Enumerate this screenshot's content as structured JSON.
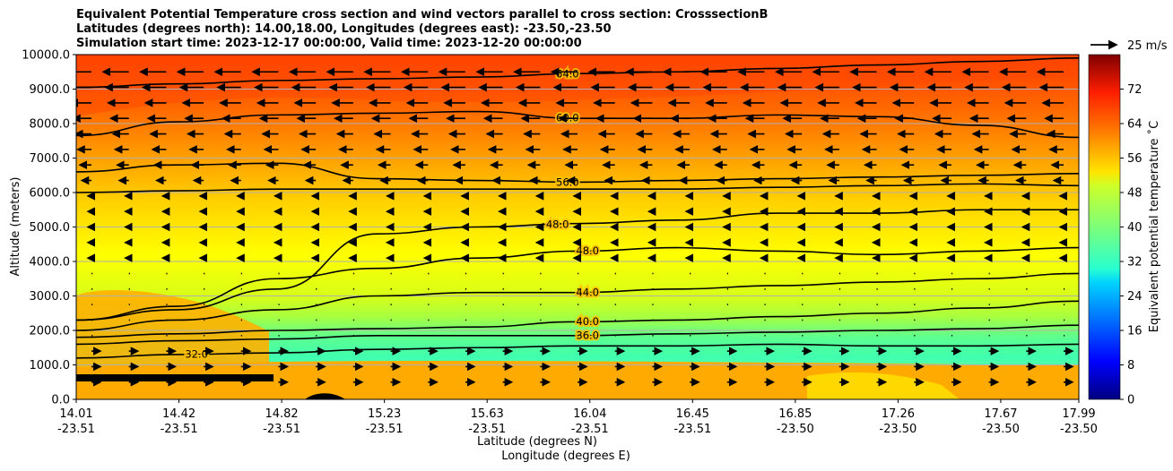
{
  "chart_data": {
    "type": "heatmap",
    "title_lines": [
      "Equivalent Potential Temperature cross section and wind vectors parallel to cross section: CrosssectionB",
      "Latitudes (degrees north): 14.00,18.00, Longitudes (degrees east): -23.50,-23.50",
      "Simulation start time: 2023-12-17 00:00:00, Valid time: 2023-12-20 00:00:00"
    ],
    "ylabel": "Altitude (meters)",
    "xlabel_line1": "Latitude (degrees N)",
    "xlabel_line2": "Longitude (degrees E)",
    "ylim": [
      0,
      10000
    ],
    "yticks": [
      "0.0",
      "1000.0",
      "2000.0",
      "3000.0",
      "4000.0",
      "5000.0",
      "6000.0",
      "7000.0",
      "8000.0",
      "9000.0",
      "10000.0"
    ],
    "xticks": [
      {
        "lat": "14.01",
        "lon": "-23.51"
      },
      {
        "lat": "14.42",
        "lon": "-23.51"
      },
      {
        "lat": "14.82",
        "lon": "-23.51"
      },
      {
        "lat": "15.23",
        "lon": "-23.51"
      },
      {
        "lat": "15.63",
        "lon": "-23.51"
      },
      {
        "lat": "16.04",
        "lon": "-23.51"
      },
      {
        "lat": "16.45",
        "lon": "-23.51"
      },
      {
        "lat": "16.85",
        "lon": "-23.50"
      },
      {
        "lat": "17.26",
        "lon": "-23.50"
      },
      {
        "lat": "17.67",
        "lon": "-23.50"
      },
      {
        "lat": "17.99",
        "lon": "-23.50"
      }
    ],
    "colorbar": {
      "label": "Equivalent potential temperature $^\\circ$C",
      "label_display": "Equivalent potential temperature ˚C",
      "range": [
        0,
        80
      ],
      "ticks": [
        "0",
        "8",
        "16",
        "24",
        "32",
        "40",
        "48",
        "56",
        "64",
        "72"
      ],
      "colormap": "jet"
    },
    "quiver_key": "25 m/s",
    "contours": [
      {
        "value": 64.0,
        "label": "64.0",
        "alt": [
          9050,
          9150,
          9250,
          9300,
          9350,
          9450,
          9500,
          9600,
          9700,
          9800,
          9900
        ]
      },
      {
        "value": 60.0,
        "label": "60.0",
        "alt": [
          7650,
          8050,
          8250,
          8300,
          8350,
          8150,
          8150,
          8250,
          8200,
          7950,
          7600
        ]
      },
      {
        "value": 56.0,
        "label": "56.0",
        "alt": [
          6600,
          6800,
          6850,
          6400,
          6350,
          6300,
          6350,
          6400,
          6450,
          6500,
          6550
        ]
      },
      {
        "value": 52.0,
        "label": "",
        "alt": [
          6000,
          6050,
          6100,
          6100,
          6100,
          6100,
          6100,
          6150,
          6200,
          6250,
          6200
        ]
      },
      {
        "value": 48.0,
        "label": "48.0",
        "alt": [
          2300,
          2600,
          3200,
          4800,
          5000,
          5100,
          5200,
          5400,
          5400,
          5500,
          5500
        ]
      },
      {
        "value": 48.0,
        "label": "48.0",
        "alt": [
          2300,
          2700,
          3500,
          3800,
          4100,
          4300,
          4400,
          4300,
          4200,
          4300,
          4400
        ]
      },
      {
        "value": 44.0,
        "label": "44.0",
        "alt": [
          2000,
          2300,
          2600,
          3000,
          3100,
          3100,
          3200,
          3300,
          3400,
          3500,
          3650
        ]
      },
      {
        "value": 40.0,
        "label": "40.0",
        "alt": [
          1800,
          1900,
          2000,
          2050,
          2100,
          2250,
          2300,
          2400,
          2500,
          2650,
          2850
        ]
      },
      {
        "value": 36.0,
        "label": "36.0",
        "alt": [
          1600,
          1700,
          1750,
          1850,
          1850,
          1850,
          1900,
          1950,
          2000,
          2050,
          2150
        ]
      },
      {
        "value": 32.0,
        "label": "32.0",
        "alt": [
          1200,
          1300,
          1350,
          1450,
          1500,
          1550,
          1550,
          1600,
          1550,
          1550,
          1600
        ]
      }
    ]
  }
}
